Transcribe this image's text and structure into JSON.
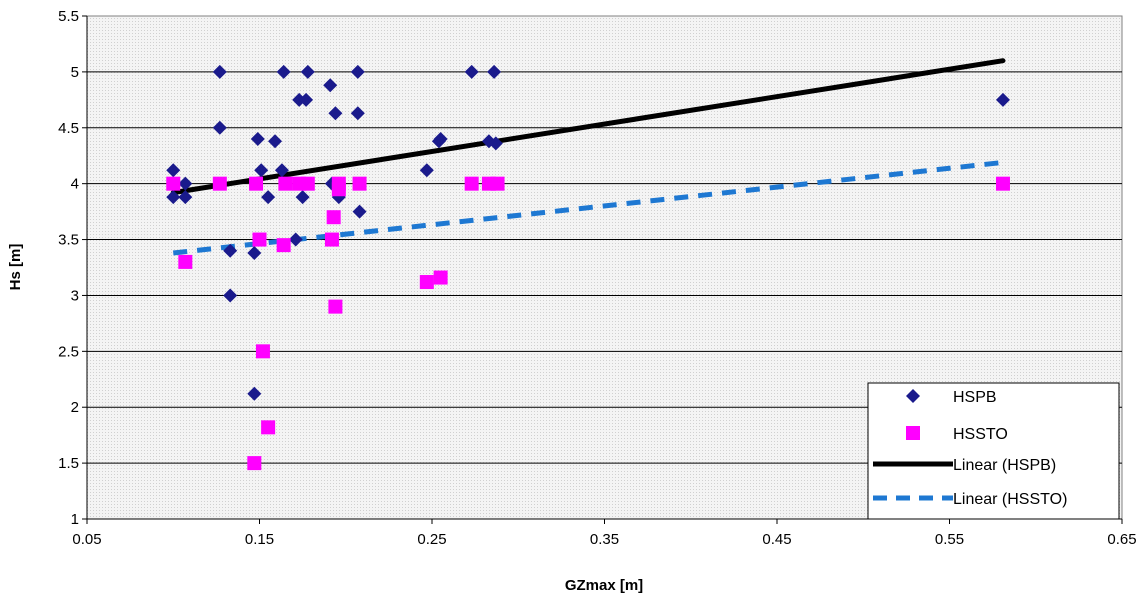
{
  "chart_data": {
    "type": "scatter",
    "title": "",
    "xlabel": "GZmax [m]",
    "ylabel": "Hs [m]",
    "xlim": [
      0.05,
      0.65
    ],
    "ylim": [
      1,
      5.5
    ],
    "x_ticks": [
      "0.05",
      "0.15",
      "0.25",
      "0.35",
      "0.45",
      "0.55",
      "0.65"
    ],
    "y_ticks": [
      "1",
      "1.5",
      "2",
      "2.5",
      "3",
      "3.5",
      "4",
      "4.5",
      "5",
      "5.5"
    ],
    "grid": true,
    "legend_position": "bottom-right",
    "series": [
      {
        "name": "HSPB",
        "marker": "diamond",
        "color": "#1a1a8c",
        "points": [
          [
            0.1,
            4.12
          ],
          [
            0.1,
            3.88
          ],
          [
            0.107,
            3.88
          ],
          [
            0.107,
            4.0
          ],
          [
            0.127,
            5.0
          ],
          [
            0.127,
            4.5
          ],
          [
            0.133,
            3.4
          ],
          [
            0.133,
            3.0
          ],
          [
            0.147,
            3.38
          ],
          [
            0.147,
            2.12
          ],
          [
            0.149,
            4.4
          ],
          [
            0.151,
            4.12
          ],
          [
            0.155,
            3.88
          ],
          [
            0.159,
            4.38
          ],
          [
            0.163,
            4.12
          ],
          [
            0.164,
            5.0
          ],
          [
            0.171,
            3.5
          ],
          [
            0.173,
            4.75
          ],
          [
            0.175,
            3.88
          ],
          [
            0.177,
            4.75
          ],
          [
            0.178,
            5.0
          ],
          [
            0.191,
            4.88
          ],
          [
            0.192,
            4.0
          ],
          [
            0.194,
            4.63
          ],
          [
            0.196,
            3.88
          ],
          [
            0.207,
            5.0
          ],
          [
            0.207,
            4.63
          ],
          [
            0.208,
            3.75
          ],
          [
            0.247,
            4.12
          ],
          [
            0.254,
            4.38
          ],
          [
            0.255,
            4.4
          ],
          [
            0.273,
            5.0
          ],
          [
            0.283,
            4.38
          ],
          [
            0.286,
            5.0
          ],
          [
            0.287,
            4.36
          ],
          [
            0.581,
            4.75
          ]
        ]
      },
      {
        "name": "HSSTO",
        "marker": "square",
        "color": "#ff00ff",
        "points": [
          [
            0.1,
            4.0
          ],
          [
            0.107,
            3.3
          ],
          [
            0.127,
            4.0
          ],
          [
            0.147,
            1.5
          ],
          [
            0.148,
            4.0
          ],
          [
            0.15,
            3.5
          ],
          [
            0.152,
            2.5
          ],
          [
            0.155,
            1.82
          ],
          [
            0.164,
            3.45
          ],
          [
            0.165,
            4.0
          ],
          [
            0.173,
            4.0
          ],
          [
            0.178,
            4.0
          ],
          [
            0.192,
            3.5
          ],
          [
            0.193,
            3.7
          ],
          [
            0.194,
            2.9
          ],
          [
            0.196,
            4.0
          ],
          [
            0.196,
            3.95
          ],
          [
            0.208,
            4.0
          ],
          [
            0.247,
            3.12
          ],
          [
            0.255,
            3.16
          ],
          [
            0.273,
            4.0
          ],
          [
            0.283,
            4.0
          ],
          [
            0.288,
            4.0
          ],
          [
            0.581,
            4.0
          ]
        ]
      }
    ],
    "trendlines": [
      {
        "name": "Linear (HSPB)",
        "color": "#000000",
        "style": "solid",
        "points": [
          [
            0.1,
            3.92
          ],
          [
            0.581,
            5.1
          ]
        ]
      },
      {
        "name": "Linear (HSSTO)",
        "color": "#1e78d2",
        "style": "dashed",
        "points": [
          [
            0.1,
            3.38
          ],
          [
            0.581,
            4.19
          ]
        ]
      }
    ]
  }
}
